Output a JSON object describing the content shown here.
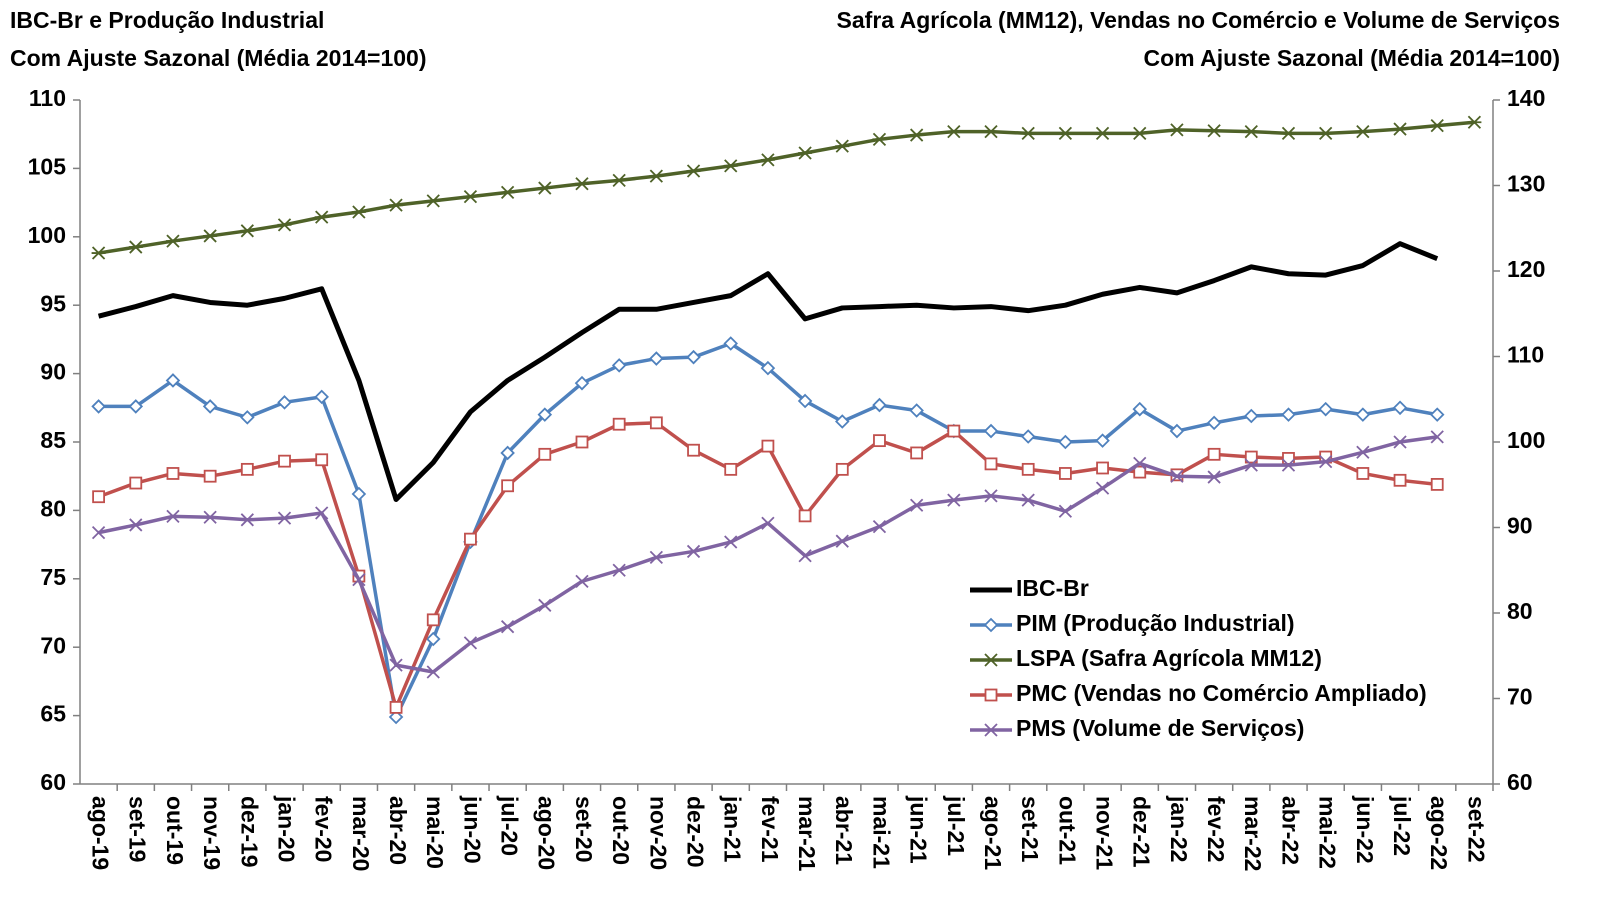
{
  "chart_data": {
    "type": "line",
    "title_left": [
      "IBC-Br e Produção Industrial",
      "Com Ajuste Sazonal (Média 2014=100)"
    ],
    "title_right": [
      "Safra Agrícola (MM12), Vendas no Comércio e Volume de Serviços",
      "Com Ajuste Sazonal (Média 2014=100)"
    ],
    "categories": [
      "ago-19",
      "set-19",
      "out-19",
      "nov-19",
      "dez-19",
      "jan-20",
      "fev-20",
      "mar-20",
      "abr-20",
      "mai-20",
      "jun-20",
      "jul-20",
      "ago-20",
      "set-20",
      "out-20",
      "nov-20",
      "dez-20",
      "jan-21",
      "fev-21",
      "mar-21",
      "abr-21",
      "mai-21",
      "jun-21",
      "jul-21",
      "ago-21",
      "set-21",
      "out-21",
      "nov-21",
      "dez-21",
      "jan-22",
      "fev-22",
      "mar-22",
      "abr-22",
      "mai-22",
      "jun-22",
      "jul-22",
      "ago-22",
      "set-22"
    ],
    "ylim": [
      60,
      110
    ],
    "yticks": [
      60,
      65,
      70,
      75,
      80,
      85,
      90,
      95,
      100,
      105,
      110
    ],
    "y2lim": [
      60,
      140
    ],
    "y2ticks": [
      60,
      70,
      80,
      90,
      100,
      110,
      120,
      130,
      140
    ],
    "grid": false,
    "legend": "lower-right",
    "series": [
      {
        "name": "IBC-Br",
        "color": "#000000",
        "marker": "none",
        "axis": "y",
        "values": [
          94.2,
          94.9,
          95.7,
          95.2,
          95.0,
          95.5,
          96.2,
          89.5,
          80.8,
          83.5,
          87.2,
          89.5,
          91.2,
          93.0,
          94.7,
          94.7,
          95.2,
          95.7,
          97.3,
          94.0,
          94.8,
          94.9,
          95.0,
          94.8,
          94.9,
          94.6,
          95.0,
          95.8,
          96.3,
          95.9,
          96.8,
          97.8,
          97.3,
          97.2,
          97.9,
          99.5,
          98.4,
          null
        ]
      },
      {
        "name": "PIM (Produção Industrial)",
        "color": "#4f81bd",
        "marker": "diamond",
        "axis": "y",
        "values": [
          87.6,
          87.6,
          89.5,
          87.6,
          86.8,
          87.9,
          88.3,
          81.2,
          64.9,
          70.6,
          77.7,
          84.2,
          87.0,
          89.3,
          90.6,
          91.1,
          91.2,
          92.2,
          90.4,
          88.0,
          86.5,
          87.7,
          87.3,
          85.8,
          85.8,
          85.4,
          85.0,
          85.1,
          87.4,
          85.8,
          86.4,
          86.9,
          87.0,
          87.4,
          87.0,
          87.5,
          87.0,
          null
        ]
      },
      {
        "name": "LSPA (Safra Agrícola MM12)",
        "color": "#4f6228",
        "marker": "star",
        "axis": "y2",
        "values": [
          122.1,
          122.8,
          123.5,
          124.1,
          124.7,
          125.4,
          126.3,
          126.9,
          127.7,
          128.2,
          128.7,
          129.2,
          129.7,
          130.2,
          130.6,
          131.1,
          131.7,
          132.3,
          133.0,
          133.8,
          134.6,
          135.4,
          135.9,
          136.3,
          136.3,
          136.1,
          136.1,
          136.1,
          136.1,
          136.5,
          136.4,
          136.3,
          136.1,
          136.1,
          136.3,
          136.6,
          137.0,
          137.4
        ]
      },
      {
        "name": "PMC (Vendas no Comércio Ampliado)",
        "color": "#c0504d",
        "marker": "square",
        "axis": "y",
        "values": [
          81.0,
          82.0,
          82.7,
          82.5,
          83.0,
          83.6,
          83.7,
          75.2,
          65.6,
          72.0,
          77.9,
          81.8,
          84.1,
          85.0,
          86.3,
          86.4,
          84.4,
          83.0,
          84.7,
          79.6,
          83.0,
          85.1,
          84.2,
          85.8,
          83.4,
          83.0,
          82.7,
          83.1,
          82.8,
          82.6,
          84.1,
          83.9,
          83.8,
          83.9,
          82.7,
          82.2,
          81.9,
          null
        ]
      },
      {
        "name": "PMS (Volume de Serviços)",
        "color": "#8064a2",
        "marker": "x",
        "axis": "y2",
        "values": [
          89.4,
          90.3,
          91.3,
          91.2,
          90.9,
          91.1,
          91.7,
          83.9,
          73.9,
          73.1,
          76.5,
          78.4,
          80.9,
          83.7,
          85.0,
          86.5,
          87.2,
          88.3,
          90.5,
          86.7,
          88.4,
          90.1,
          92.6,
          93.2,
          93.7,
          93.2,
          91.9,
          94.6,
          97.5,
          96.0,
          95.9,
          97.3,
          97.3,
          97.7,
          98.8,
          100.0,
          100.6,
          null
        ]
      }
    ]
  }
}
